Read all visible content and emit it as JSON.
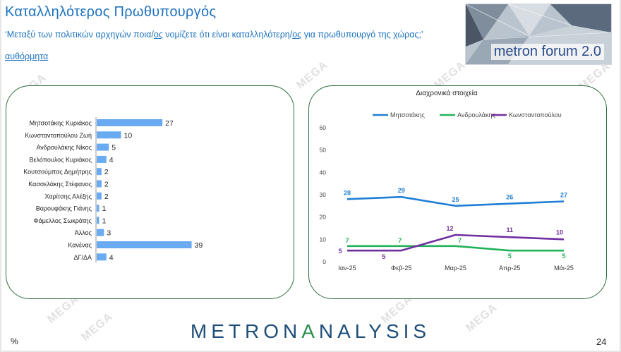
{
  "header": {
    "title": "Καταλληλότερος Πρωθυπουργός",
    "question_pre": "‘Μεταξύ των πολιτικών αρχηγών ποια/",
    "question_u1": "ος",
    "question_mid": " νομίζετε ότι είναι καταλληλότερη/",
    "question_u2": "ος",
    "question_post": " για πρωθυπουργό της χώρας;’",
    "spontaneous": "αυθόρμητα"
  },
  "logo": {
    "text": "metron forum 2.0"
  },
  "watermark": "MEGA",
  "footer": {
    "brand_part1": "METRON",
    "brand_part2": "A",
    "brand_part3": "NALYSIS",
    "percent": "%",
    "page": "24"
  },
  "chart_data": [
    {
      "type": "bar",
      "orientation": "horizontal",
      "categories": [
        "Μητσοτάκης Κυριάκος",
        "Κωνσταντοπούλου Ζωή",
        "Ανδρουλάκης Νίκος",
        "Βελόπουλος Κυριάκος",
        "Κουτσούμπας Δημήτρης",
        "Κασσελάκης Στέφανος",
        "Χαρίτσης Αλέξης",
        "Βαρουφάκης Γιάνης",
        "Φάμελλος Σωκράτης",
        "Άλλος",
        "Κανένας",
        "ΔΓ/ΔΑ"
      ],
      "values": [
        27,
        10,
        5,
        4,
        2,
        2,
        2,
        1,
        1,
        3,
        39,
        4
      ],
      "color": "#6aaaf0"
    },
    {
      "type": "line",
      "title": "Διαχρονικά στοιχεία",
      "categories": [
        "Ιαν-25",
        "Φεβ-25",
        "Μαρ-25",
        "Απρ-25",
        "Μάι-25"
      ],
      "ylim": [
        0,
        60
      ],
      "yticks": [
        0,
        10,
        20,
        30,
        40,
        50,
        60
      ],
      "legend_position": "top",
      "series": [
        {
          "name": "Μητσοτάκης",
          "values": [
            28,
            29,
            25,
            26,
            27
          ],
          "color": "#1f7fd6"
        },
        {
          "name": "Ανδρουλάκης",
          "values": [
            7,
            7,
            7,
            5,
            5
          ],
          "color": "#22b35a"
        },
        {
          "name": "Κωνσταντοπούλου",
          "values": [
            5,
            5,
            12,
            11,
            10
          ],
          "color": "#7030a0"
        }
      ]
    }
  ]
}
